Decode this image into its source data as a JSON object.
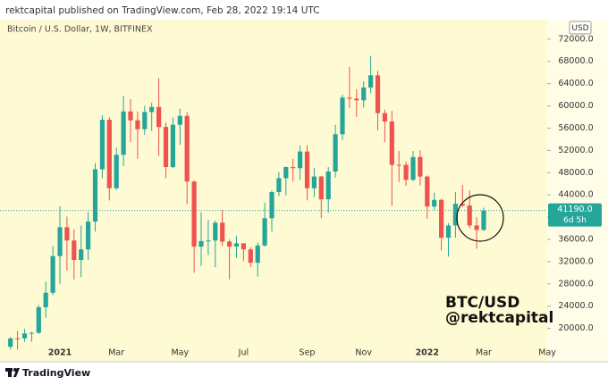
{
  "header": "rektcapital published on TradingView.com, Feb 28, 2022 19:14 UTC",
  "footer": "TradingView",
  "chart_data": {
    "type": "candlestick",
    "title": "Bitcoin / U.S. Dollar, 1W, BITFINEX",
    "currency": "USD",
    "annotation": [
      "BTC/USD",
      "@rektcapital"
    ],
    "categories": [
      null,
      null,
      null,
      null,
      null,
      null,
      null,
      "2021",
      null,
      null,
      null,
      null,
      null,
      null,
      null,
      "Mar",
      null,
      null,
      null,
      null,
      null,
      null,
      null,
      null,
      "May",
      null,
      null,
      null,
      null,
      null,
      null,
      null,
      null,
      "Jul",
      null,
      null,
      null,
      null,
      null,
      null,
      null,
      null,
      "Sep",
      null,
      null,
      null,
      null,
      null,
      null,
      null,
      "Nov",
      null,
      null,
      null,
      null,
      null,
      null,
      null,
      null,
      "2022",
      null,
      null,
      null,
      null,
      null,
      null,
      null,
      "Mar",
      null,
      null,
      null,
      null,
      null,
      null,
      null,
      null,
      "May"
    ],
    "open": [
      16700,
      18200,
      18200,
      19100,
      19200,
      23800,
      26400,
      33000,
      38200,
      35800,
      32300,
      34200,
      39200,
      48600,
      57500,
      45200,
      51200,
      59000,
      57400,
      55800,
      58900,
      59800,
      56200,
      49000,
      56600,
      58200,
      46400,
      34700,
      35700,
      35800,
      39000,
      35600,
      34700,
      35300,
      34200,
      31800,
      34900,
      39800,
      44500,
      47000,
      49000,
      48800,
      51800,
      45200,
      47300,
      43200,
      48200,
      54900,
      61500,
      61300,
      61000,
      63300,
      65500,
      58700,
      57200,
      49400,
      49400,
      46700,
      50800,
      47300,
      41900,
      43100,
      36300,
      38500,
      42400,
      42100,
      38500,
      37700,
      null,
      null,
      null,
      null,
      null,
      null,
      null,
      null,
      null
    ],
    "high": [
      18500,
      19500,
      19900,
      19400,
      24200,
      28400,
      34800,
      42000,
      40100,
      37800,
      38500,
      40900,
      49700,
      58300,
      58000,
      52500,
      61800,
      61200,
      59000,
      60000,
      60600,
      65000,
      57000,
      57900,
      59500,
      58900,
      46600,
      40900,
      39500,
      39400,
      41300,
      36000,
      36600,
      35300,
      34600,
      35400,
      42600,
      44800,
      48100,
      49100,
      50500,
      52900,
      52900,
      48800,
      47400,
      49000,
      56600,
      62000,
      67000,
      63000,
      64400,
      69000,
      66300,
      59300,
      59100,
      51900,
      50000,
      51900,
      52000,
      47500,
      44400,
      43300,
      38900,
      44500,
      45800,
      44800,
      40000,
      41700,
      null,
      null,
      null,
      null,
      null,
      null,
      null,
      null,
      null
    ],
    "low": [
      16200,
      16200,
      17600,
      17600,
      19000,
      21900,
      26000,
      28000,
      30400,
      28800,
      29200,
      32300,
      37400,
      47000,
      43000,
      44900,
      49200,
      53500,
      50500,
      54800,
      55500,
      51000,
      47000,
      48800,
      53000,
      42300,
      30000,
      31200,
      33200,
      31000,
      34800,
      28800,
      32700,
      32100,
      31000,
      29300,
      34700,
      37400,
      43800,
      43900,
      46400,
      46700,
      43000,
      43600,
      39800,
      40800,
      47100,
      53900,
      59600,
      58000,
      59700,
      62300,
      55600,
      53500,
      42000,
      46300,
      45600,
      46500,
      45700,
      39700,
      41300,
      34000,
      32900,
      36300,
      41800,
      38000,
      34300,
      37500,
      null,
      null,
      null,
      null,
      null,
      null,
      null,
      null,
      null
    ],
    "close": [
      18200,
      18150,
      19100,
      19200,
      23800,
      26400,
      33000,
      38200,
      35800,
      32300,
      34200,
      39200,
      48600,
      57500,
      45200,
      51200,
      59000,
      57400,
      55800,
      58900,
      59800,
      56200,
      49000,
      56600,
      58200,
      46400,
      34700,
      35700,
      35800,
      39000,
      35600,
      34700,
      35300,
      34200,
      31800,
      34900,
      39800,
      44500,
      47000,
      49000,
      48800,
      51800,
      45200,
      47300,
      43200,
      48200,
      54900,
      61500,
      61300,
      61000,
      63300,
      65500,
      58700,
      57200,
      49400,
      49300,
      46700,
      50800,
      47300,
      41900,
      43100,
      36300,
      38500,
      42400,
      42100,
      38500,
      37700,
      41190,
      null,
      null,
      null,
      null,
      null,
      null,
      null,
      null,
      null
    ],
    "up_color": "#26a69a",
    "down_color": "#ef5350",
    "price_line": {
      "value": 41190,
      "label": "41190.0"
    },
    "countdown": "6d 5h",
    "ylim": [
      14000,
      75500
    ],
    "yticks": [
      {
        "value": 20000,
        "label": "20000.0"
      },
      {
        "value": 24000,
        "label": "24000.0"
      },
      {
        "value": 28000,
        "label": "28000.0"
      },
      {
        "value": 32000,
        "label": "32000.0"
      },
      {
        "value": 36000,
        "label": "36000.0"
      },
      {
        "value": 40000,
        "label": "40000.0"
      },
      {
        "value": 44000,
        "label": "44000.0"
      },
      {
        "value": 48000,
        "label": "48000.0"
      },
      {
        "value": 52000,
        "label": "52000.0"
      },
      {
        "value": 56000,
        "label": "56000.0"
      },
      {
        "value": 60000,
        "label": "60000.0"
      },
      {
        "value": 64000,
        "label": "64000.0"
      },
      {
        "value": 68000,
        "label": "68000.0"
      },
      {
        "value": 72000,
        "label": "72000.0"
      }
    ]
  }
}
